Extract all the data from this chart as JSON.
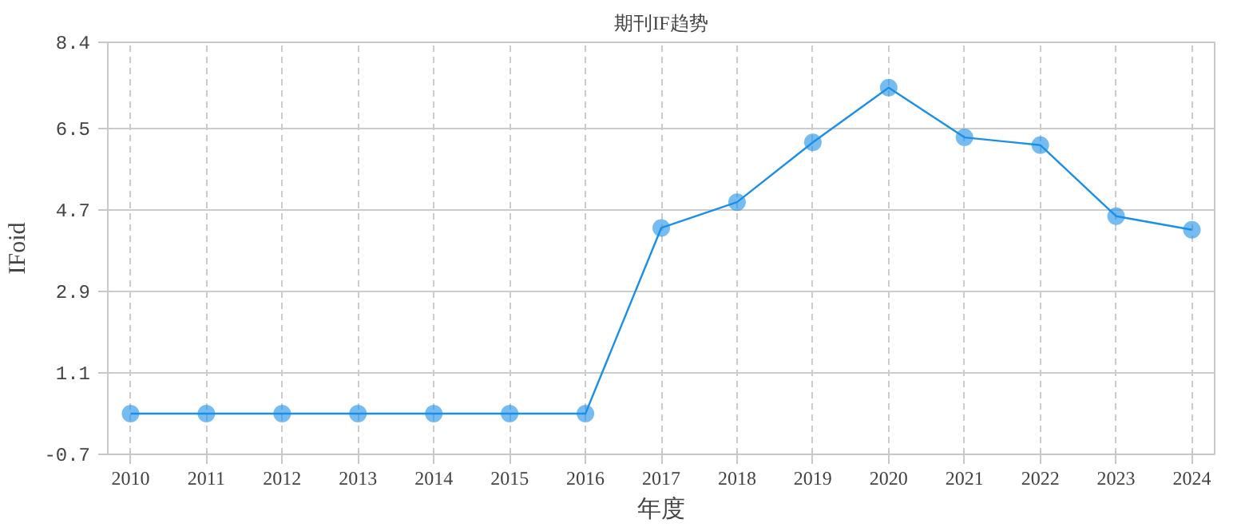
{
  "chart_data": {
    "type": "line",
    "title": "期刊IF趋势",
    "xlabel": "年度",
    "ylabel": "IFoid",
    "x": [
      2010,
      2011,
      2012,
      2013,
      2014,
      2015,
      2016,
      2017,
      2018,
      2019,
      2020,
      2021,
      2022,
      2023,
      2024
    ],
    "series": [
      {
        "color": "#1a8fe8",
        "values": [
          0.2,
          0.2,
          0.2,
          0.2,
          0.2,
          0.2,
          0.2,
          4.3,
          4.87,
          6.19,
          7.4,
          6.3,
          6.13,
          4.56,
          4.26
        ]
      }
    ],
    "xlim": [
      2009.7,
      2024.3
    ],
    "xticks": [
      2010,
      2011,
      2012,
      2013,
      2014,
      2015,
      2016,
      2017,
      2018,
      2019,
      2020,
      2021,
      2022,
      2023,
      2024
    ],
    "ylim": [
      -0.7,
      8.4
    ],
    "yticks": [
      -0.7,
      1.1,
      2.9,
      4.7,
      6.5,
      8.4
    ],
    "grid": true,
    "marker": "circle",
    "line_style": "solid"
  }
}
